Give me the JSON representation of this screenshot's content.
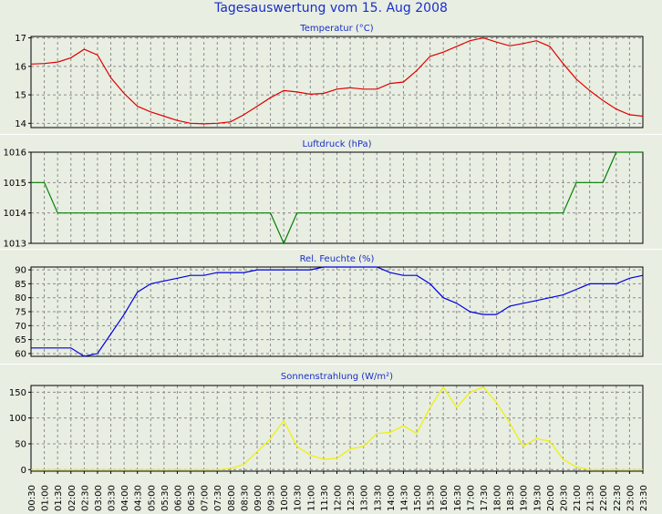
{
  "page_title": "Tagesauswertung vom 15. Aug 2008",
  "x_labels": [
    "00:30",
    "01:00",
    "01:30",
    "02:00",
    "02:30",
    "03:00",
    "03:30",
    "04:00",
    "04:30",
    "05:00",
    "05:30",
    "06:00",
    "06:30",
    "07:00",
    "07:30",
    "08:00",
    "08:30",
    "09:00",
    "09:30",
    "10:00",
    "10:30",
    "11:00",
    "11:30",
    "12:00",
    "12:30",
    "13:00",
    "13:30",
    "14:00",
    "14:30",
    "15:00",
    "15:30",
    "16:00",
    "16:30",
    "17:00",
    "17:30",
    "18:00",
    "18:30",
    "19:00",
    "19:30",
    "20:00",
    "20:30",
    "21:00",
    "21:30",
    "22:00",
    "22:30",
    "23:00",
    "23:30"
  ],
  "chart_data": [
    {
      "type": "line",
      "title": "Temperatur (°C)",
      "color": "#e00000",
      "ylim": [
        13.85,
        17.05
      ],
      "yticks": [
        14,
        15,
        16,
        17
      ],
      "values": [
        16.08,
        16.1,
        16.15,
        16.3,
        16.6,
        16.4,
        15.6,
        15.05,
        14.6,
        14.4,
        14.25,
        14.1,
        14.0,
        13.98,
        14.0,
        14.05,
        14.3,
        14.6,
        14.9,
        15.15,
        15.1,
        15.02,
        15.05,
        15.2,
        15.25,
        15.2,
        15.2,
        15.4,
        15.45,
        15.85,
        16.35,
        16.5,
        16.7,
        16.9,
        17.0,
        16.85,
        16.72,
        16.8,
        16.9,
        16.7,
        16.1,
        15.55,
        15.15,
        14.8,
        14.5,
        14.3,
        14.25
      ]
    },
    {
      "type": "line",
      "title": "Luftdruck (hPa)",
      "color": "#008000",
      "ylim": [
        1013,
        1016
      ],
      "yticks": [
        1013,
        1014,
        1015,
        1016
      ],
      "values": [
        1015,
        1015,
        1014,
        1014,
        1014,
        1014,
        1014,
        1014,
        1014,
        1014,
        1014,
        1014,
        1014,
        1014,
        1014,
        1014,
        1014,
        1014,
        1014,
        1013,
        1014,
        1014,
        1014,
        1014,
        1014,
        1014,
        1014,
        1014,
        1014,
        1014,
        1014,
        1014,
        1014,
        1014,
        1014,
        1014,
        1014,
        1014,
        1014,
        1014,
        1014,
        1015,
        1015,
        1015,
        1016,
        1016,
        1016
      ]
    },
    {
      "type": "line",
      "title": "Rel. Feuchte (%)",
      "color": "#0000e0",
      "ylim": [
        59,
        91
      ],
      "yticks": [
        60,
        65,
        70,
        75,
        80,
        85,
        90
      ],
      "values": [
        62,
        62,
        62,
        62,
        59,
        60,
        67,
        74,
        82,
        85,
        86,
        87,
        88,
        88,
        89,
        89,
        89,
        90,
        90,
        90,
        90,
        90,
        91,
        91,
        91,
        91,
        91,
        89,
        88,
        88,
        85,
        80,
        78,
        75,
        74,
        74,
        77,
        78,
        79,
        80,
        81,
        83,
        85,
        85,
        85,
        87,
        88
      ]
    },
    {
      "type": "line",
      "title": "Sonnenstrahlung (W/m²)",
      "color": "#f0f000",
      "ylim": [
        -3,
        163
      ],
      "yticks": [
        0,
        50,
        100,
        150
      ],
      "values": [
        0,
        0,
        0,
        0,
        0,
        0,
        0,
        0,
        0,
        0,
        0,
        0,
        0,
        0,
        0,
        2,
        10,
        35,
        60,
        95,
        45,
        28,
        20,
        22,
        40,
        45,
        70,
        72,
        85,
        70,
        120,
        160,
        120,
        150,
        160,
        130,
        90,
        45,
        60,
        55,
        20,
        5,
        0,
        0,
        0,
        0,
        0
      ]
    }
  ]
}
